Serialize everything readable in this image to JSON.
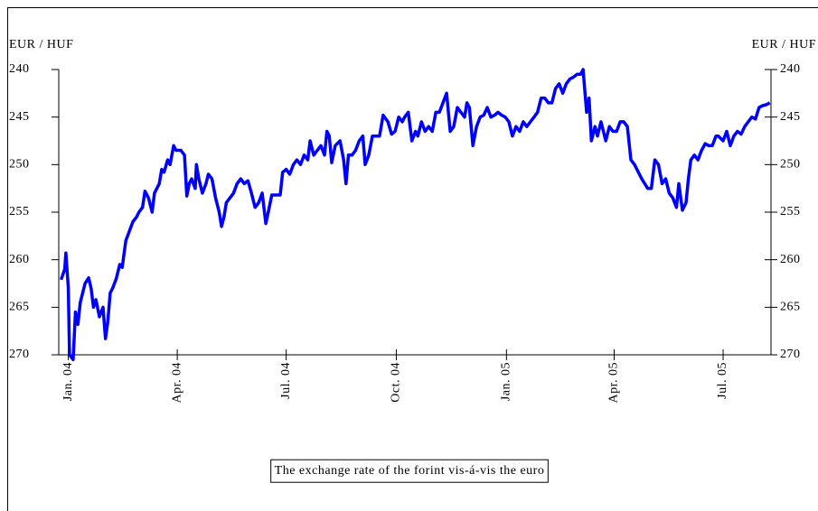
{
  "chart_data": {
    "type": "line",
    "y_label": "EUR / HUF",
    "y2_label": "EUR / HUF",
    "x": [
      -6,
      -3,
      -2,
      0,
      1,
      4,
      6,
      8,
      10,
      14,
      17,
      19,
      21,
      23,
      26,
      29,
      31,
      33,
      35,
      37,
      40,
      43,
      45,
      48,
      51,
      54,
      57,
      59,
      62,
      64,
      67,
      70,
      72,
      76,
      78,
      80,
      83,
      85,
      88,
      90,
      94,
      97,
      99,
      101,
      103,
      106,
      107,
      109,
      112,
      115,
      117,
      120,
      123,
      126,
      128,
      130,
      132,
      135,
      138,
      141,
      144,
      147,
      150,
      153,
      156,
      159,
      162,
      165,
      167,
      170,
      174,
      177,
      179,
      182,
      185,
      188,
      191,
      194,
      197,
      200,
      202,
      205,
      208,
      211,
      214,
      216,
      218,
      220,
      223,
      227,
      230,
      232,
      234,
      237,
      240,
      243,
      246,
      248,
      251,
      254,
      257,
      260,
      263,
      267,
      270,
      273,
      276,
      279,
      281,
      284,
      287,
      290,
      292,
      295,
      298,
      301,
      304,
      307,
      310,
      313,
      316,
      319,
      322,
      325,
      328,
      331,
      333,
      335,
      338,
      341,
      344,
      347,
      350,
      353,
      356,
      359,
      362,
      365,
      368,
      371,
      374,
      377,
      380,
      383,
      386,
      389,
      392,
      395,
      398,
      401,
      404,
      407,
      410,
      413,
      416,
      419,
      422,
      425,
      428,
      430,
      433,
      435,
      437,
      440,
      442,
      445,
      447,
      449,
      452,
      455,
      458,
      461,
      464,
      467,
      470,
      473,
      479,
      484,
      487,
      490,
      493,
      496,
      499,
      502,
      505,
      508,
      510,
      513,
      516,
      518,
      520,
      523,
      526,
      529,
      532,
      535,
      538,
      541,
      543,
      547,
      550,
      553,
      556,
      559,
      562,
      565,
      568,
      571,
      574,
      577,
      580,
      583,
      586
    ],
    "series": [
      {
        "name": "The exchange rate of the forint vis-á-vis the euro",
        "color": "#0000ff",
        "values": [
          262.1,
          261.0,
          259.3,
          263.0,
          270.0,
          270.5,
          265.5,
          266.8,
          264.5,
          262.5,
          261.9,
          263.0,
          265.0,
          264.2,
          266.0,
          265.0,
          268.3,
          266.5,
          263.5,
          263.0,
          262.0,
          260.5,
          260.8,
          258.0,
          257.0,
          256.0,
          255.5,
          255.0,
          254.5,
          252.8,
          253.5,
          255.0,
          253.0,
          252.0,
          250.5,
          250.8,
          249.5,
          250.0,
          248.0,
          248.5,
          248.5,
          249.0,
          253.3,
          252.0,
          251.5,
          252.5,
          250.0,
          251.5,
          253.0,
          252.0,
          251.0,
          251.5,
          253.5,
          255.0,
          256.5,
          255.5,
          254.0,
          253.5,
          253.0,
          252.0,
          251.5,
          252.0,
          251.7,
          253.0,
          254.5,
          254.0,
          253.0,
          256.2,
          255.0,
          253.2,
          253.2,
          253.2,
          250.8,
          250.5,
          251.0,
          250.0,
          249.5,
          250.0,
          249.0,
          249.5,
          247.5,
          249.0,
          248.5,
          248.0,
          249.0,
          246.5,
          247.0,
          249.8,
          248.0,
          247.5,
          249.5,
          252.0,
          249.0,
          249.0,
          248.5,
          247.5,
          247.0,
          250.0,
          249.0,
          247.0,
          247.0,
          247.0,
          244.8,
          245.5,
          246.8,
          246.5,
          245.0,
          245.5,
          245.0,
          244.5,
          247.5,
          246.5,
          247.0,
          245.5,
          246.5,
          246.0,
          246.5,
          244.5,
          244.5,
          243.5,
          242.5,
          246.5,
          246.0,
          244.0,
          244.5,
          245.0,
          243.5,
          244.0,
          248.0,
          246.0,
          245.0,
          244.8,
          244.0,
          245.0,
          244.8,
          244.5,
          244.8,
          245.0,
          245.5,
          247.0,
          246.0,
          246.5,
          245.5,
          246.0,
          245.5,
          245.0,
          244.5,
          243.0,
          243.0,
          243.5,
          243.5,
          242.0,
          241.5,
          242.5,
          241.5,
          241.0,
          240.8,
          240.5,
          240.5,
          240.0,
          244.5,
          243.0,
          247.5,
          246.0,
          247.0,
          245.5,
          246.5,
          247.5,
          246.0,
          246.5,
          246.5,
          245.5,
          245.5,
          246.0,
          249.5,
          250.0,
          251.5,
          252.5,
          252.5,
          249.5,
          250.0,
          252.0,
          251.5,
          253.0,
          253.5,
          254.5,
          252.0,
          254.8,
          254.0,
          251.5,
          249.5,
          249.0,
          249.5,
          248.5,
          247.8,
          248.0,
          248.0,
          247.0,
          247.0,
          247.5,
          246.5,
          248.0,
          247.0,
          246.5,
          246.8,
          246.0,
          245.5,
          245.0,
          245.2,
          244.0,
          243.8,
          243.7,
          243.5
        ]
      }
    ],
    "xlim": [
      -8,
      587
    ],
    "xticks": [
      {
        "value": 0,
        "label": "Jan. 04"
      },
      {
        "value": 91,
        "label": "Apr. 04"
      },
      {
        "value": 182,
        "label": "Jul. 04"
      },
      {
        "value": 274,
        "label": "Oct. 04"
      },
      {
        "value": 366,
        "label": "Jan. 05"
      },
      {
        "value": 456,
        "label": "Apr. 05"
      },
      {
        "value": 547,
        "label": "Jul. 05"
      }
    ],
    "ylim": [
      240,
      270
    ],
    "yticks": [
      240,
      245,
      250,
      255,
      260,
      265,
      270
    ],
    "y2lim": [
      240,
      270
    ],
    "y2ticks": [
      240,
      245,
      250,
      255,
      260,
      265,
      270
    ],
    "y_inverted": true,
    "grid": false
  }
}
